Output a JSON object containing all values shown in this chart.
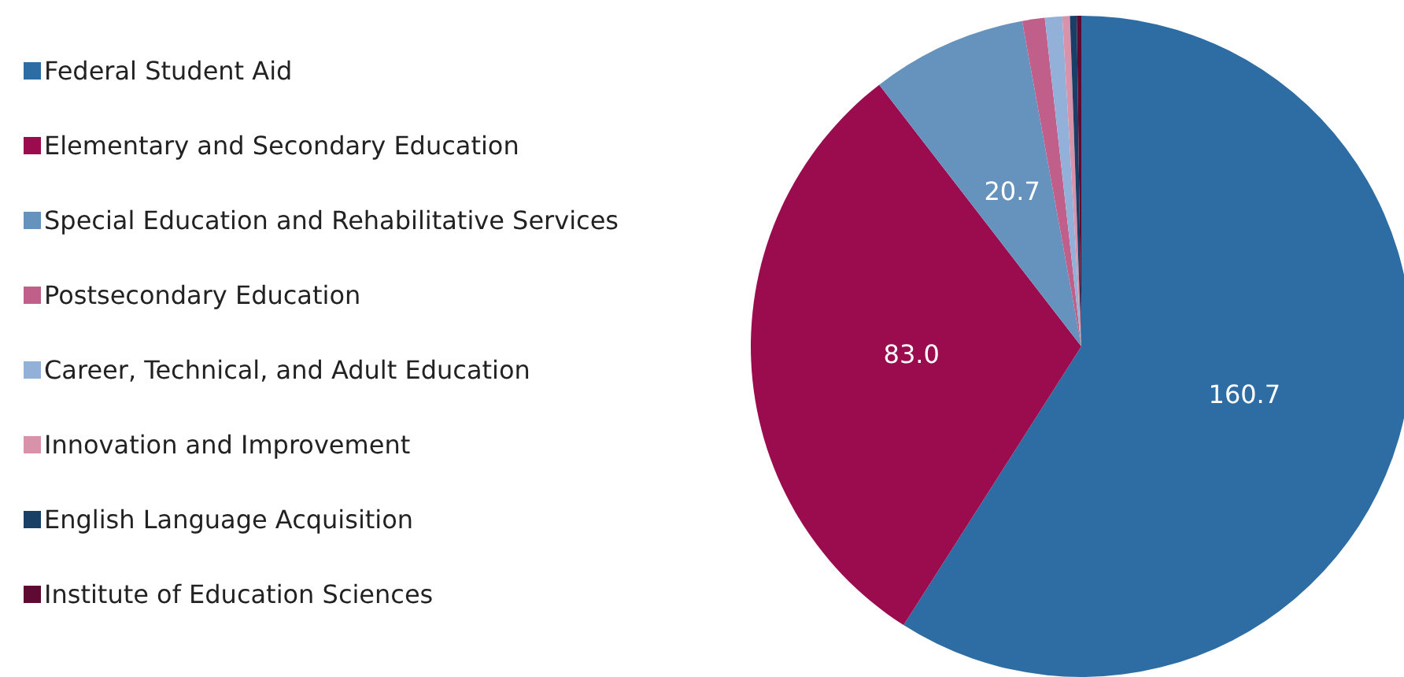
{
  "chart_data": {
    "type": "pie",
    "categories": [
      "Federal Student Aid",
      "Elementary and Secondary Education",
      "Special Education and Rehabilitative Services",
      "Postsecondary Education",
      "Career, Technical, and Adult Education",
      "Innovation and Improvement",
      "English Language Acquisition",
      "Institute of Education Sciences"
    ],
    "values": [
      160.7,
      83.0,
      20.7,
      3.0,
      2.3,
      1.0,
      0.9,
      0.6
    ],
    "value_labels": [
      "160.7",
      "83.0",
      "20.7",
      null,
      null,
      null,
      null,
      null
    ],
    "colors": [
      "#2e6da4",
      "#9b0c4e",
      "#6693bd",
      "#c0608a",
      "#93b1d8",
      "#d893aa",
      "#1a3f66",
      "#5e0a32"
    ],
    "legend": "left"
  }
}
